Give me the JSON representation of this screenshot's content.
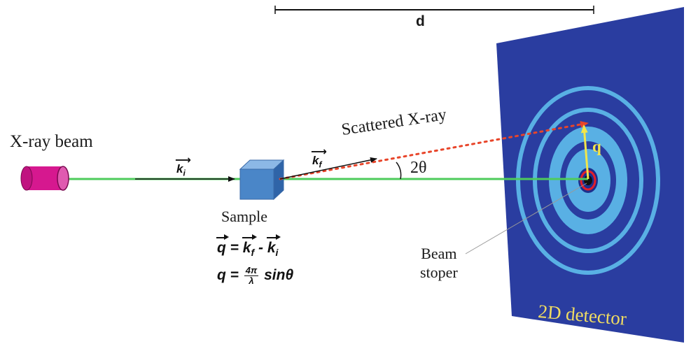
{
  "labels": {
    "distance": "d",
    "xray_beam": "X-ray beam",
    "sample": "Sample",
    "scattered": "Scattered X-ray",
    "angle": "2θ",
    "beam_stopper_line1": "Beam",
    "beam_stopper_line2": "stoper",
    "detector": "2D detector",
    "q": "q"
  },
  "vectors": {
    "incident": {
      "symbol": "k",
      "sub": "i"
    },
    "scattered": {
      "symbol": "k",
      "sub": "f"
    }
  },
  "equations": {
    "eq1": {
      "lhs": "q",
      "eq": "=",
      "a": "k",
      "a_sub": "f",
      "minus": "-",
      "b": "k",
      "b_sub": "i"
    },
    "eq2": {
      "lhs": "q",
      "eq": "=",
      "num": "4π",
      "den": "λ",
      "rhs": "sinθ"
    }
  },
  "colors": {
    "beam": "#4ecb5b",
    "source": "#d6188f",
    "sample": "#4a86c8",
    "detector_panel": "#2a3da0",
    "ring": "#59b0e4",
    "scatter_dots": "#e8452a",
    "q_arrow": "#f2e64a",
    "detector_text": "#f0dc62"
  }
}
